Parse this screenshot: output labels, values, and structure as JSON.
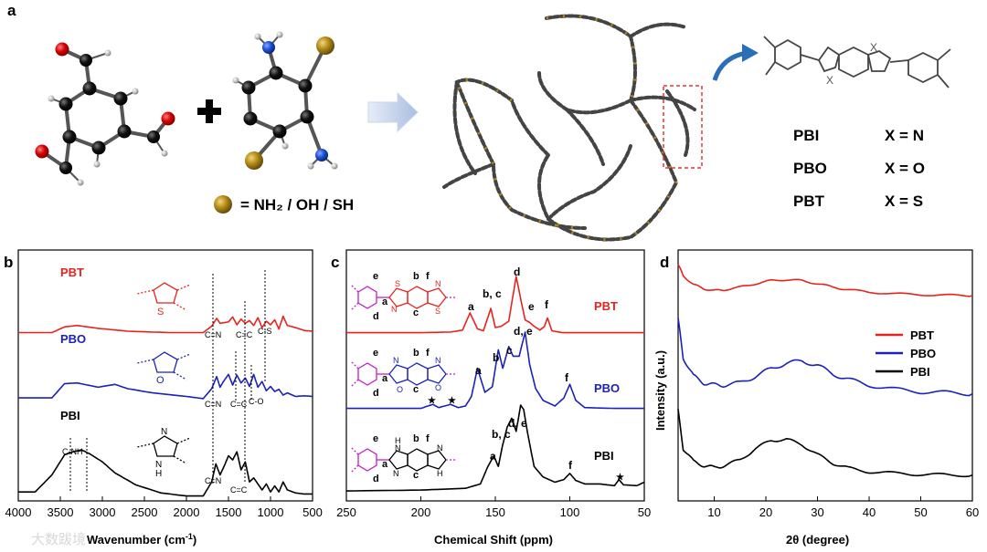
{
  "figure": {
    "panel_labels": [
      "a",
      "b",
      "c",
      "d"
    ],
    "panel_a": {
      "legend_text": "= NH₂ / OH / SH",
      "table": [
        {
          "name": "PBI",
          "x": "X = N"
        },
        {
          "name": "PBO",
          "x": "X = O"
        },
        {
          "name": "PBT",
          "x": "X = S"
        }
      ],
      "struct_x_label": "X"
    },
    "panel_b": {
      "xlabel": "Wavenumber (cm",
      "xlabel_sup": "-1",
      "xlabel_close": ")",
      "xticks": [
        "4000",
        "3500",
        "3000",
        "2500",
        "2000",
        "1500",
        "1000",
        "500"
      ],
      "series_labels": [
        "PBT",
        "PBO",
        "PBI"
      ],
      "annotations": [
        "C=N",
        "C=C",
        "C-S",
        "C=N",
        "C=C",
        "C-O",
        "C-NH",
        "C=N",
        "C=C"
      ],
      "ring_atoms": [
        "S",
        "O",
        "N",
        "N",
        "H"
      ]
    },
    "panel_c": {
      "xlabel": "Chemical Shift (ppm)",
      "xticks": [
        "250",
        "200",
        "150",
        "100",
        "50"
      ],
      "series_labels": [
        "PBT",
        "PBO",
        "PBI"
      ],
      "peak_labels_pbt": [
        "a",
        "b, c",
        "d",
        "e",
        "f"
      ],
      "peak_labels_pbo": [
        "a",
        "b",
        "c",
        "d, e",
        "f"
      ],
      "peak_labels_pbi": [
        "a",
        "b, c",
        "d, e",
        "f"
      ],
      "star": "★",
      "struct_letters": [
        "e",
        "d",
        "a",
        "b",
        "c",
        "f"
      ],
      "atoms_pbt": [
        "S",
        "N",
        "N",
        "S"
      ],
      "atoms_pbo": [
        "O",
        "N",
        "N",
        "O"
      ],
      "atoms_pbi": [
        "H",
        "N",
        "N",
        "N",
        "H"
      ]
    },
    "panel_d": {
      "ylabel": "Intensity (a.u.)",
      "xlabel": "2θ (degree)",
      "xticks": [
        "10",
        "20",
        "30",
        "40",
        "50",
        "60"
      ],
      "legend": [
        "PBT",
        "PBO",
        "PBI"
      ]
    },
    "watermark": "大数跋境"
  },
  "colors": {
    "pbt": "#e8231f",
    "pbo": "#1c22b8",
    "pbi": "#000000",
    "magenta": "#c41ec4",
    "gold": "#9a7212"
  },
  "chart_data": [
    {
      "type": "line",
      "title": "",
      "xlabel": "Wavenumber (cm-1)",
      "ylabel": "",
      "xlim": [
        4000,
        500
      ],
      "series": [
        {
          "name": "PBT",
          "x": [
            4000,
            3600,
            3450,
            3300,
            3050,
            2700,
            2200,
            1800,
            1700,
            1640,
            1600,
            1500,
            1450,
            1400,
            1350,
            1300,
            1250,
            1200,
            1150,
            1100,
            1050,
            1000,
            950,
            900,
            850,
            800,
            700,
            600,
            500
          ],
          "y": [
            0.93,
            0.93,
            0.85,
            0.83,
            0.87,
            0.91,
            0.93,
            0.93,
            0.84,
            0.73,
            0.8,
            0.78,
            0.71,
            0.82,
            0.74,
            0.8,
            0.76,
            0.83,
            0.72,
            0.86,
            0.77,
            0.82,
            0.75,
            0.88,
            0.7,
            0.83,
            0.86,
            0.9,
            0.91
          ]
        },
        {
          "name": "PBO",
          "x": [
            4000,
            3600,
            3450,
            3300,
            3050,
            2850,
            2700,
            2400,
            2000,
            1800,
            1700,
            1640,
            1600,
            1560,
            1500,
            1450,
            1400,
            1350,
            1300,
            1250,
            1200,
            1150,
            1100,
            1050,
            1000,
            950,
            900,
            850,
            800,
            700,
            600,
            500
          ],
          "y": [
            0.95,
            0.95,
            0.75,
            0.74,
            0.8,
            0.76,
            0.82,
            0.88,
            0.93,
            0.96,
            0.82,
            0.65,
            0.8,
            0.72,
            0.62,
            0.77,
            0.63,
            0.74,
            0.67,
            0.79,
            0.62,
            0.8,
            0.72,
            0.85,
            0.79,
            0.86,
            0.83,
            0.91,
            0.88,
            0.93,
            0.92,
            0.93
          ]
        },
        {
          "name": "PBI",
          "x": [
            4000,
            3800,
            3600,
            3450,
            3350,
            3250,
            3150,
            3000,
            2850,
            2600,
            2300,
            2000,
            1800,
            1700,
            1650,
            1600,
            1550,
            1500,
            1450,
            1400,
            1350,
            1300,
            1250,
            1200,
            1100,
            1050,
            1000,
            950,
            900,
            850,
            800,
            700,
            600,
            500
          ],
          "y": [
            0.92,
            0.92,
            0.75,
            0.55,
            0.52,
            0.5,
            0.54,
            0.62,
            0.73,
            0.85,
            0.93,
            0.96,
            0.96,
            0.82,
            0.64,
            0.75,
            0.66,
            0.56,
            0.6,
            0.52,
            0.7,
            0.62,
            0.82,
            0.78,
            0.9,
            0.84,
            0.92,
            0.86,
            0.92,
            0.82,
            0.9,
            0.93,
            0.94,
            0.94
          ]
        }
      ]
    },
    {
      "type": "line",
      "title": "",
      "xlabel": "Chemical Shift (ppm)",
      "ylabel": "",
      "xlim": [
        250,
        50
      ],
      "series": [
        {
          "name": "PBT",
          "x": [
            250,
            200,
            180,
            172,
            167,
            162,
            158,
            153,
            150,
            146,
            141,
            136,
            133,
            130,
            127,
            124,
            120,
            117,
            115,
            112,
            105,
            100,
            50
          ],
          "y": [
            0.02,
            0.02,
            0.03,
            0.06,
            0.33,
            0.08,
            0.05,
            0.4,
            0.1,
            0.12,
            0.2,
            0.9,
            0.55,
            0.22,
            0.18,
            0.12,
            0.06,
            0.12,
            0.25,
            0.05,
            0.02,
            0.02,
            0.02
          ]
        },
        {
          "name": "PBO",
          "x": [
            250,
            200,
            192,
            188,
            180,
            175,
            170,
            166,
            162,
            157,
            152,
            148,
            145,
            141,
            138,
            134,
            130,
            127,
            123,
            118,
            110,
            104,
            100,
            96,
            90,
            70,
            50
          ],
          "y": [
            0.05,
            0.05,
            0.1,
            0.06,
            0.1,
            0.06,
            0.08,
            0.2,
            0.55,
            0.25,
            0.32,
            0.78,
            0.55,
            0.82,
            0.7,
            0.7,
            1.0,
            0.6,
            0.3,
            0.15,
            0.08,
            0.18,
            0.35,
            0.15,
            0.06,
            0.05,
            0.05
          ]
        },
        {
          "name": "PBI",
          "x": [
            250,
            200,
            170,
            160,
            155,
            151,
            148,
            145,
            142,
            139,
            136,
            133,
            131,
            128,
            124,
            118,
            110,
            104,
            100,
            96,
            90,
            80,
            70,
            67,
            64,
            55,
            50
          ],
          "y": [
            0.02,
            0.03,
            0.05,
            0.1,
            0.3,
            0.42,
            0.3,
            0.55,
            0.75,
            0.85,
            0.7,
            1.0,
            0.95,
            0.65,
            0.3,
            0.18,
            0.12,
            0.15,
            0.22,
            0.14,
            0.1,
            0.1,
            0.08,
            0.15,
            0.09,
            0.08,
            0.12
          ]
        }
      ]
    },
    {
      "type": "line",
      "title": "",
      "xlabel": "2θ (degree)",
      "ylabel": "Intensity (a.u.)",
      "xlim": [
        3,
        60
      ],
      "legend_position": "right",
      "series": [
        {
          "name": "PBT",
          "x": [
            3,
            4,
            6,
            8,
            10,
            12,
            15,
            18,
            21,
            24,
            27,
            30,
            33,
            36,
            40,
            45,
            50,
            55,
            60
          ],
          "y": [
            1.0,
            0.78,
            0.6,
            0.52,
            0.48,
            0.5,
            0.55,
            0.62,
            0.68,
            0.7,
            0.68,
            0.62,
            0.55,
            0.5,
            0.45,
            0.42,
            0.4,
            0.39,
            0.38
          ]
        },
        {
          "name": "PBO",
          "x": [
            3,
            4,
            6,
            8,
            10,
            12,
            15,
            18,
            21,
            24,
            27,
            30,
            33,
            36,
            40,
            45,
            50,
            55,
            60
          ],
          "y": [
            1.0,
            0.65,
            0.48,
            0.42,
            0.4,
            0.4,
            0.42,
            0.48,
            0.55,
            0.6,
            0.62,
            0.58,
            0.5,
            0.45,
            0.4,
            0.36,
            0.34,
            0.33,
            0.32
          ]
        },
        {
          "name": "PBI",
          "x": [
            3,
            4,
            6,
            8,
            10,
            12,
            15,
            18,
            21,
            24,
            27,
            30,
            33,
            36,
            40,
            45,
            50,
            55,
            60
          ],
          "y": [
            1.0,
            0.55,
            0.4,
            0.35,
            0.33,
            0.35,
            0.42,
            0.55,
            0.65,
            0.66,
            0.6,
            0.48,
            0.38,
            0.32,
            0.28,
            0.26,
            0.25,
            0.24,
            0.24
          ]
        }
      ]
    }
  ]
}
